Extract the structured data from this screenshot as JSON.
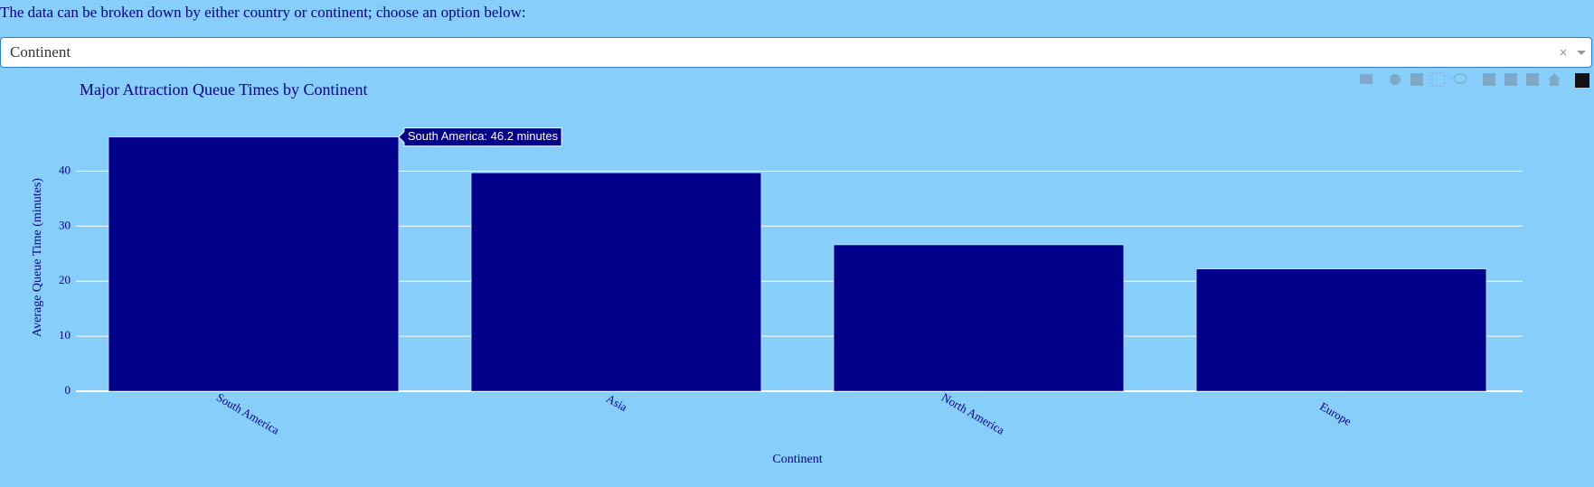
{
  "intro": "The data can be broken down by either country or continent; choose an option below:",
  "dropdown": {
    "value": "Continent"
  },
  "chart_data": {
    "type": "bar",
    "title": "Major Attraction Queue Times by Continent",
    "x_label": "Continent",
    "y_label": "Average Queue Time (minutes)",
    "categories": [
      "South America",
      "Asia",
      "North America",
      "Europe"
    ],
    "values": [
      46.2,
      39.7,
      26.6,
      22.2
    ],
    "color": "#00008b",
    "ylim": [
      0,
      48.6
    ],
    "yticks": [
      0,
      10,
      20,
      30,
      40
    ],
    "grid": true,
    "tooltip": "South America: 46.2 minutes"
  }
}
